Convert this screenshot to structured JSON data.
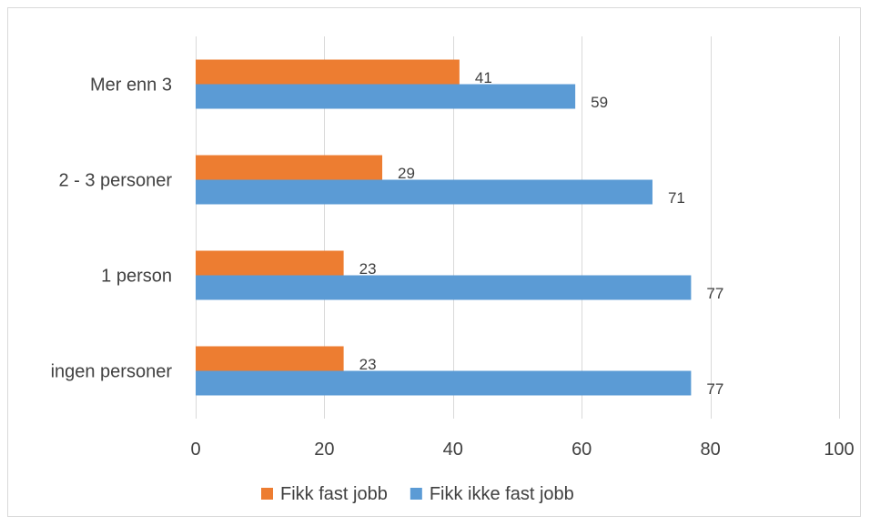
{
  "chart_data": {
    "type": "bar",
    "orientation": "horizontal",
    "categories": [
      "ingen personer",
      "1 person",
      "2 - 3 personer",
      "Mer enn 3"
    ],
    "series": [
      {
        "name": "Fikk fast jobb",
        "color": "#ed7d31",
        "values": [
          23,
          23,
          29,
          41
        ]
      },
      {
        "name": "Fikk ikke fast jobb",
        "color": "#5b9bd5",
        "values": [
          77,
          77,
          71,
          59
        ]
      }
    ],
    "xlim": [
      0,
      100
    ],
    "xticks": [
      0,
      20,
      40,
      60,
      80,
      100
    ],
    "grid": true,
    "legend": "bottom",
    "data_labels": true
  }
}
